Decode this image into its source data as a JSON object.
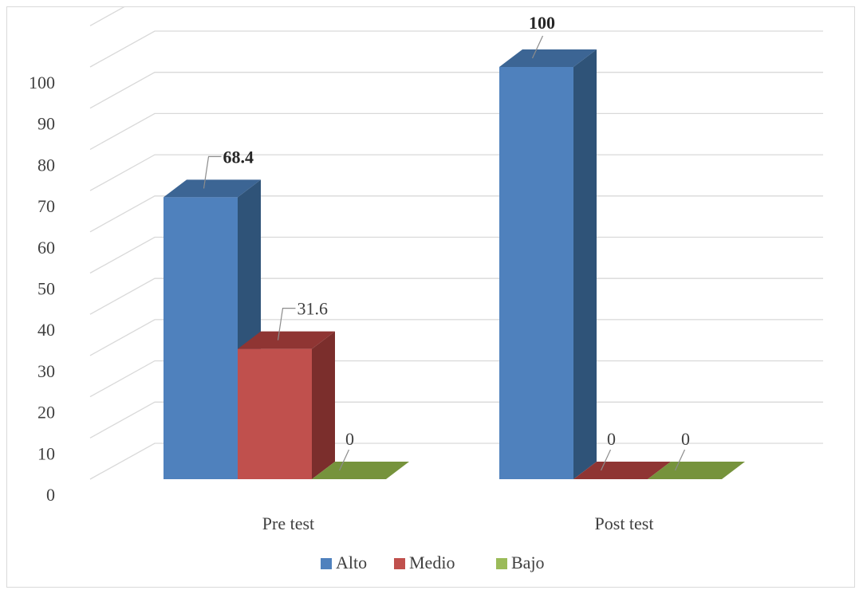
{
  "chart_data": {
    "type": "bar",
    "style": "3d-clustered-column",
    "categories": [
      "Pre test",
      "Post test"
    ],
    "series": [
      {
        "name": "Alto",
        "values": [
          68.4,
          100
        ],
        "color": "#4f81bd",
        "side_color": "#2f5378",
        "top_color": "#3c6594"
      },
      {
        "name": "Medio",
        "values": [
          31.6,
          0
        ],
        "color": "#c0504d",
        "side_color": "#7b2e2c",
        "top_color": "#8f3533"
      },
      {
        "name": "Bajo",
        "values": [
          0,
          0
        ],
        "color": "#9bbb59",
        "side_color": "#5e7a30",
        "top_color": "#76933c"
      }
    ],
    "data_labels": [
      [
        "68.4",
        "100"
      ],
      [
        "31.6",
        "0"
      ],
      [
        "0",
        "0"
      ]
    ],
    "bold_labels": [
      [
        true,
        true
      ],
      [
        false,
        false
      ],
      [
        false,
        false
      ]
    ],
    "yticks": [
      "0",
      "10",
      "20",
      "30",
      "40",
      "50",
      "60",
      "70",
      "80",
      "90",
      "100"
    ],
    "ylim": [
      0,
      100
    ],
    "grid": true,
    "legend_position": "bottom",
    "title": "",
    "xlabel": "",
    "ylabel": ""
  }
}
